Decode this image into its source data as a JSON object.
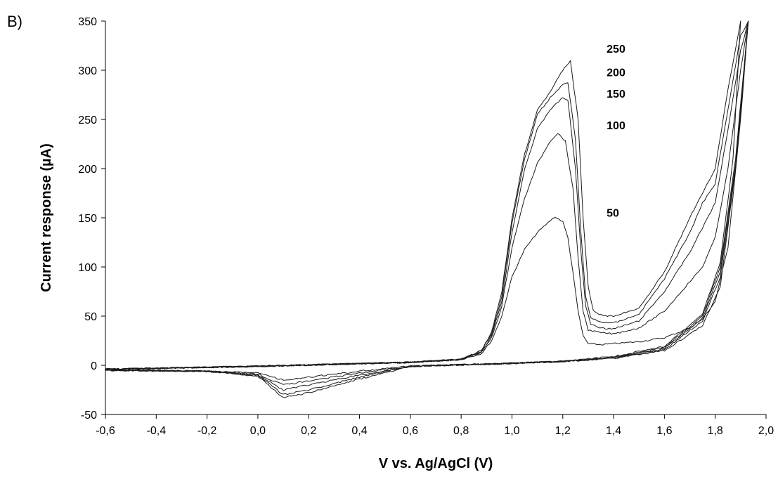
{
  "chart_data": {
    "type": "line",
    "panel_label": "B)",
    "xlabel": "V vs. Ag/AgCl (V)",
    "ylabel": "Current response (µA)",
    "xlim": [
      -0.6,
      2.0
    ],
    "ylim": [
      -50,
      350
    ],
    "x_ticks": [
      "-0,6",
      "-0,4",
      "-0,2",
      "0,0",
      "0,2",
      "0,4",
      "0,6",
      "0,8",
      "1,0",
      "1,2",
      "1,4",
      "1,6",
      "1,8",
      "2,0"
    ],
    "y_ticks": [
      "-50",
      "0",
      "50",
      "100",
      "150",
      "200",
      "250",
      "300",
      "350"
    ],
    "grid": false,
    "series": [
      {
        "name": "50",
        "label_pos": [
          1.45,
          151
        ],
        "forward": [
          [
            -0.6,
            -4
          ],
          [
            0.0,
            -1
          ],
          [
            0.6,
            3
          ],
          [
            0.8,
            6
          ],
          [
            0.88,
            12
          ],
          [
            0.92,
            25
          ],
          [
            0.96,
            50
          ],
          [
            1.0,
            90
          ],
          [
            1.05,
            118
          ],
          [
            1.1,
            135
          ],
          [
            1.15,
            147
          ],
          [
            1.17,
            151
          ],
          [
            1.2,
            146
          ],
          [
            1.22,
            130
          ],
          [
            1.24,
            95
          ],
          [
            1.26,
            55
          ],
          [
            1.28,
            30
          ],
          [
            1.3,
            22
          ],
          [
            1.35,
            21
          ],
          [
            1.4,
            22
          ],
          [
            1.5,
            24
          ],
          [
            1.6,
            28
          ],
          [
            1.7,
            38
          ],
          [
            1.75,
            47
          ],
          [
            1.8,
            65
          ],
          [
            1.85,
            120
          ],
          [
            1.9,
            250
          ],
          [
            1.93,
            350
          ]
        ],
        "reverse": [
          [
            1.93,
            350
          ],
          [
            1.88,
            200
          ],
          [
            1.82,
            80
          ],
          [
            1.75,
            40
          ],
          [
            1.6,
            15
          ],
          [
            1.4,
            7
          ],
          [
            1.2,
            4
          ],
          [
            1.0,
            2
          ],
          [
            0.6,
            -1
          ],
          [
            0.4,
            -6
          ],
          [
            0.2,
            -12
          ],
          [
            0.1,
            -15
          ],
          [
            0.0,
            -8
          ],
          [
            -0.2,
            -6
          ],
          [
            -0.6,
            -5
          ]
        ]
      },
      {
        "name": "100",
        "label_pos": [
          1.45,
          240
        ],
        "forward": [
          [
            -0.6,
            -4
          ],
          [
            0.0,
            -1
          ],
          [
            0.6,
            3
          ],
          [
            0.8,
            6
          ],
          [
            0.88,
            13
          ],
          [
            0.92,
            28
          ],
          [
            0.96,
            60
          ],
          [
            1.0,
            120
          ],
          [
            1.05,
            170
          ],
          [
            1.1,
            205
          ],
          [
            1.15,
            228
          ],
          [
            1.18,
            236
          ],
          [
            1.21,
            228
          ],
          [
            1.24,
            180
          ],
          [
            1.26,
            110
          ],
          [
            1.28,
            55
          ],
          [
            1.3,
            36
          ],
          [
            1.35,
            33
          ],
          [
            1.4,
            32
          ],
          [
            1.5,
            38
          ],
          [
            1.6,
            55
          ],
          [
            1.7,
            85
          ],
          [
            1.75,
            100
          ],
          [
            1.8,
            130
          ],
          [
            1.85,
            200
          ],
          [
            1.9,
            300
          ],
          [
            1.93,
            350
          ]
        ],
        "reverse": [
          [
            1.93,
            350
          ],
          [
            1.88,
            200
          ],
          [
            1.82,
            90
          ],
          [
            1.75,
            45
          ],
          [
            1.6,
            16
          ],
          [
            1.4,
            7
          ],
          [
            1.2,
            4
          ],
          [
            1.0,
            2
          ],
          [
            0.6,
            -1
          ],
          [
            0.4,
            -8
          ],
          [
            0.2,
            -16
          ],
          [
            0.1,
            -20
          ],
          [
            0.0,
            -9
          ],
          [
            -0.2,
            -6
          ],
          [
            -0.6,
            -5
          ]
        ]
      },
      {
        "name": "150",
        "label_pos": [
          1.45,
          272
        ],
        "forward": [
          [
            -0.6,
            -4
          ],
          [
            0.0,
            -1
          ],
          [
            0.6,
            3
          ],
          [
            0.8,
            6
          ],
          [
            0.88,
            14
          ],
          [
            0.92,
            30
          ],
          [
            0.96,
            65
          ],
          [
            1.0,
            135
          ],
          [
            1.05,
            200
          ],
          [
            1.1,
            240
          ],
          [
            1.15,
            260
          ],
          [
            1.2,
            272
          ],
          [
            1.22,
            270
          ],
          [
            1.25,
            200
          ],
          [
            1.27,
            120
          ],
          [
            1.29,
            60
          ],
          [
            1.31,
            42
          ],
          [
            1.35,
            38
          ],
          [
            1.4,
            37
          ],
          [
            1.5,
            45
          ],
          [
            1.6,
            75
          ],
          [
            1.7,
            115
          ],
          [
            1.75,
            140
          ],
          [
            1.8,
            165
          ],
          [
            1.85,
            240
          ],
          [
            1.9,
            320
          ],
          [
            1.93,
            350
          ]
        ],
        "reverse": [
          [
            1.93,
            350
          ],
          [
            1.88,
            205
          ],
          [
            1.82,
            95
          ],
          [
            1.75,
            48
          ],
          [
            1.6,
            17
          ],
          [
            1.4,
            8
          ],
          [
            1.2,
            4
          ],
          [
            1.0,
            2
          ],
          [
            0.6,
            -1
          ],
          [
            0.4,
            -10
          ],
          [
            0.2,
            -20
          ],
          [
            0.1,
            -25
          ],
          [
            0.0,
            -10
          ],
          [
            -0.2,
            -6
          ],
          [
            -0.6,
            -5
          ]
        ]
      },
      {
        "name": "200",
        "label_pos": [
          1.45,
          294
        ],
        "forward": [
          [
            -0.6,
            -4
          ],
          [
            0.0,
            -1
          ],
          [
            0.6,
            3
          ],
          [
            0.8,
            6
          ],
          [
            0.88,
            15
          ],
          [
            0.92,
            32
          ],
          [
            0.96,
            70
          ],
          [
            1.0,
            145
          ],
          [
            1.05,
            210
          ],
          [
            1.1,
            255
          ],
          [
            1.15,
            272
          ],
          [
            1.2,
            285
          ],
          [
            1.22,
            288
          ],
          [
            1.25,
            230
          ],
          [
            1.27,
            140
          ],
          [
            1.29,
            70
          ],
          [
            1.31,
            48
          ],
          [
            1.35,
            44
          ],
          [
            1.4,
            43
          ],
          [
            1.5,
            52
          ],
          [
            1.6,
            88
          ],
          [
            1.7,
            135
          ],
          [
            1.75,
            165
          ],
          [
            1.8,
            185
          ],
          [
            1.85,
            260
          ],
          [
            1.9,
            335
          ],
          [
            1.93,
            350
          ]
        ],
        "reverse": [
          [
            1.93,
            350
          ],
          [
            1.88,
            210
          ],
          [
            1.82,
            100
          ],
          [
            1.75,
            50
          ],
          [
            1.6,
            18
          ],
          [
            1.4,
            8
          ],
          [
            1.2,
            4
          ],
          [
            1.0,
            2
          ],
          [
            0.6,
            -1
          ],
          [
            0.4,
            -12
          ],
          [
            0.2,
            -25
          ],
          [
            0.1,
            -30
          ],
          [
            0.0,
            -10
          ],
          [
            -0.2,
            -6
          ],
          [
            -0.6,
            -5
          ]
        ]
      },
      {
        "name": "250",
        "label_pos": [
          1.45,
          318
        ],
        "forward": [
          [
            -0.6,
            -4
          ],
          [
            0.0,
            -1
          ],
          [
            0.6,
            3
          ],
          [
            0.8,
            6
          ],
          [
            0.88,
            15
          ],
          [
            0.92,
            34
          ],
          [
            0.96,
            75
          ],
          [
            1.0,
            150
          ],
          [
            1.05,
            215
          ],
          [
            1.1,
            260
          ],
          [
            1.15,
            278
          ],
          [
            1.2,
            300
          ],
          [
            1.23,
            310
          ],
          [
            1.26,
            250
          ],
          [
            1.28,
            150
          ],
          [
            1.3,
            80
          ],
          [
            1.32,
            55
          ],
          [
            1.36,
            50
          ],
          [
            1.4,
            50
          ],
          [
            1.5,
            58
          ],
          [
            1.6,
            95
          ],
          [
            1.7,
            150
          ],
          [
            1.75,
            175
          ],
          [
            1.8,
            200
          ],
          [
            1.85,
            280
          ],
          [
            1.9,
            350
          ]
        ],
        "reverse": [
          [
            1.9,
            350
          ],
          [
            1.87,
            210
          ],
          [
            1.82,
            105
          ],
          [
            1.75,
            52
          ],
          [
            1.6,
            19
          ],
          [
            1.4,
            9
          ],
          [
            1.2,
            4
          ],
          [
            1.0,
            2
          ],
          [
            0.6,
            -1
          ],
          [
            0.4,
            -14
          ],
          [
            0.2,
            -28
          ],
          [
            0.1,
            -33
          ],
          [
            0.0,
            -11
          ],
          [
            -0.2,
            -6
          ],
          [
            -0.6,
            -5
          ]
        ]
      }
    ]
  }
}
